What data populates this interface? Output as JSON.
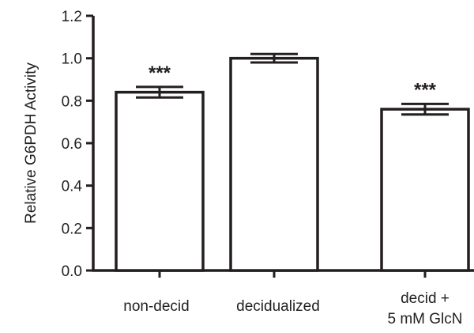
{
  "chart_data": {
    "type": "bar",
    "title": "",
    "xlabel": "",
    "ylabel": "Relative G6PDH Activity",
    "ylim": [
      0,
      1.2
    ],
    "yticks": [
      "0.0",
      "0.2",
      "0.4",
      "0.6",
      "0.8",
      "1.0",
      "1.2"
    ],
    "categories": [
      [
        "non-decid"
      ],
      [
        "decidualized"
      ],
      [
        "decid +",
        "5 mM  GlcN"
      ]
    ],
    "values": [
      0.84,
      1.0,
      0.76
    ],
    "errors": [
      0.025,
      0.02,
      0.025
    ],
    "significance": [
      "***",
      "",
      "***"
    ],
    "bar_fill": "#ffffff",
    "bar_stroke": "#231f20",
    "grid": false,
    "legend": "none"
  }
}
